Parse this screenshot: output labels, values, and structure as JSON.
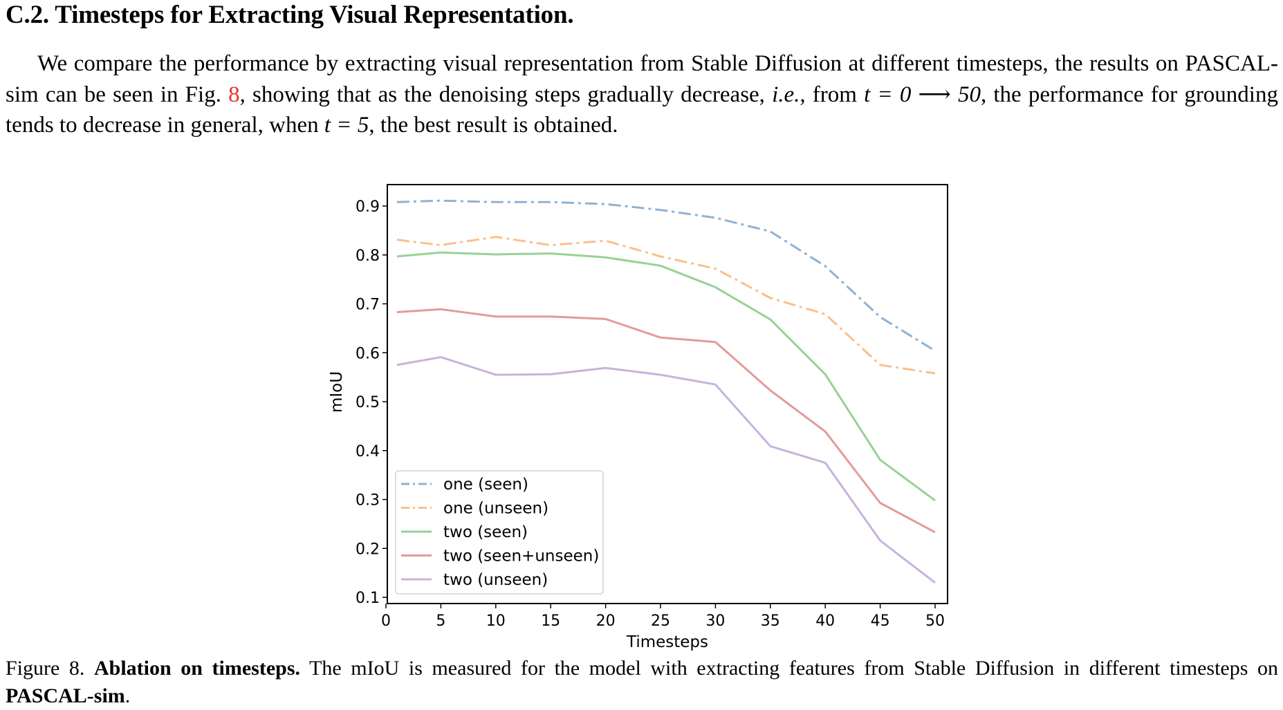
{
  "heading": "C.2. Timesteps for Extracting Visual Representation.",
  "paragraph": {
    "part1": "We compare the performance by extracting visual representation from Stable Diffusion at different timesteps, the results on PASCAL-sim can be seen in Fig. ",
    "fig_ref": "8",
    "part2": ", showing that as the denoising steps gradually decrease, ",
    "ie": "i.e.",
    "part3": ", from ",
    "math1": "t = 0 ⟶ 50",
    "part4": ", the performance for grounding tends to decrease in general, when ",
    "math2": "t = 5",
    "part5": ", the best result is obtained."
  },
  "caption": {
    "prefix": "Figure 8. ",
    "bold": "Ablation on timesteps.",
    "text": " The mIoU is measured for the model with extracting features from Stable Diffusion in different timesteps on ",
    "bold2": "PASCAL-sim",
    "end": "."
  },
  "chart_data": {
    "type": "line",
    "xlabel": "Timesteps",
    "ylabel": "mIoU",
    "xlim": [
      0,
      50
    ],
    "ylim": [
      0.1,
      0.94
    ],
    "xticks": [
      0,
      5,
      10,
      15,
      20,
      25,
      30,
      35,
      40,
      45,
      50
    ],
    "yticks": [
      0.1,
      0.2,
      0.3,
      0.4,
      0.5,
      0.6,
      0.7,
      0.8,
      0.9
    ],
    "x": [
      1,
      5,
      10,
      15,
      20,
      25,
      30,
      35,
      40,
      45,
      50
    ],
    "legend_position": "lower-left",
    "grid": false,
    "series": [
      {
        "name": "one (seen)",
        "color": "#8fb2d4",
        "style": "dashdot",
        "values": [
          0.908,
          0.911,
          0.908,
          0.908,
          0.904,
          0.892,
          0.876,
          0.848,
          0.777,
          0.673,
          0.604
        ]
      },
      {
        "name": "one (unseen)",
        "color": "#f9c08a",
        "style": "dashdot",
        "values": [
          0.831,
          0.82,
          0.837,
          0.82,
          0.829,
          0.797,
          0.772,
          0.712,
          0.679,
          0.575,
          0.558
        ]
      },
      {
        "name": "two (seen)",
        "color": "#98d196",
        "style": "solid",
        "values": [
          0.797,
          0.805,
          0.801,
          0.803,
          0.795,
          0.778,
          0.734,
          0.668,
          0.556,
          0.381,
          0.298
        ]
      },
      {
        "name": "two (seen+unseen)",
        "color": "#e49a9b",
        "style": "solid",
        "values": [
          0.683,
          0.689,
          0.674,
          0.674,
          0.669,
          0.631,
          0.622,
          0.523,
          0.439,
          0.293,
          0.233
        ]
      },
      {
        "name": "two (unseen)",
        "color": "#c8b3db",
        "style": "solid",
        "values": [
          0.575,
          0.591,
          0.555,
          0.556,
          0.569,
          0.555,
          0.535,
          0.409,
          0.375,
          0.216,
          0.13
        ]
      }
    ]
  }
}
